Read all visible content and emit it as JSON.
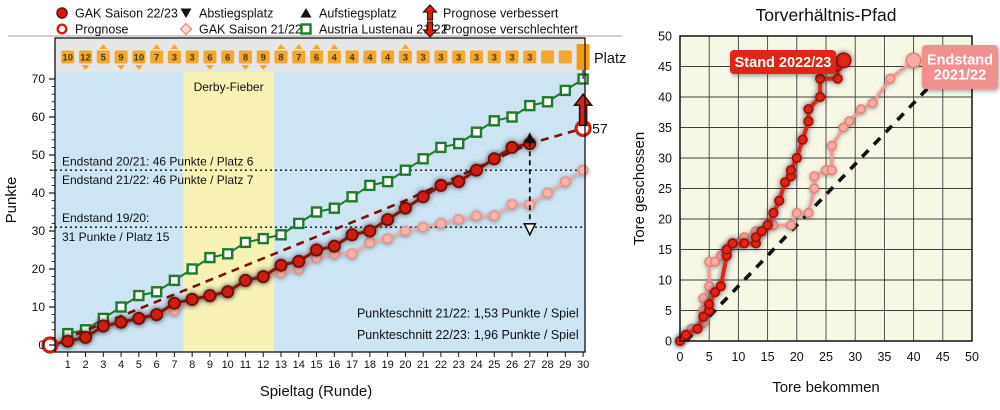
{
  "colors": {
    "red": "#cf1d12",
    "red_edge": "#6f0e06",
    "red_line": "#8a1208",
    "dark_red_dash": "#7c1107",
    "pink": "#f7b5b0",
    "pink_edge": "#e8938c",
    "pink_line": "#f4a9a3",
    "green": "#1f7a2d",
    "orange": "#f5a72b",
    "orange_text": "#4c3a13",
    "blue_bg": "#cde4f3",
    "gray_strip": "#e6e6e6",
    "yellow_band": "#f8f3b5",
    "cream_bg": "#f7f7e6",
    "grid": "#3f3f3f",
    "right_red": "#e02417",
    "right_red_edge": "#a00d04",
    "right_pink": "#f6aba5",
    "right_pink_edge": "#e57f78",
    "right_pink_line": "#f29a95",
    "label_red_box": "#e02417",
    "label_pink_box": "#f1908d"
  },
  "chart_data": [
    {
      "type": "line",
      "title": "",
      "xlabel": "Spieltag (Runde)",
      "ylabel": "Punkte",
      "xlim": [
        0,
        30
      ],
      "ylim": [
        0,
        80
      ],
      "y_tick_step": 10,
      "y_tick_max": 70,
      "x_ticks_every": 1,
      "grid": false,
      "legend_position": "top",
      "band": {
        "label": "Derby-Fieber",
        "x0": 7.5,
        "x1": 12.6
      },
      "platz_row": {
        "label": "Platz",
        "values": [
          10,
          12,
          5,
          9,
          10,
          7,
          3,
          3,
          6,
          6,
          8,
          9,
          8,
          7,
          6,
          4,
          4,
          4,
          4,
          3,
          3,
          3,
          3,
          3,
          3,
          3,
          3
        ],
        "empty_slots": [
          28,
          29
        ],
        "tall_slot": 30
      },
      "hlines": [
        {
          "y": 46
        },
        {
          "y": 31
        }
      ],
      "annotations": [
        {
          "text": "Endstand 20/21: 46 Punkte / Platz 6",
          "x": 0.675,
          "y": 47.3,
          "anchor": "start",
          "size": 12
        },
        {
          "text": "Endstand 21/22: 46 Punkte / Platz 7",
          "x": 0.675,
          "y": 42.4,
          "anchor": "start",
          "size": 12
        },
        {
          "text": "Endstand 19/20:",
          "x": 0.675,
          "y": 32.4,
          "anchor": "start",
          "size": 12
        },
        {
          "text": "31 Punkte / Platz 15",
          "x": 0.675,
          "y": 27.4,
          "anchor": "start",
          "size": 12
        },
        {
          "text": "Punkteschnitt 21/22: 1,53 Punkte / Spiel",
          "x": 29.75,
          "y": 7.3,
          "anchor": "end",
          "size": 12.5
        },
        {
          "text": "Punkteschnitt 22/23: 1,96 Punkte / Spiel",
          "x": 29.75,
          "y": 1.6,
          "anchor": "end",
          "size": 12.5
        },
        {
          "text": "Derby-Fieber",
          "x": 10.05,
          "y": 66.8,
          "anchor": "middle",
          "size": 12
        }
      ],
      "series": [
        {
          "name": "Austria Lustenau 21/22",
          "marker": "open-square",
          "x_start": 1,
          "values": [
            3,
            4,
            7,
            10,
            13,
            14,
            17,
            20,
            23,
            24,
            27,
            28,
            29,
            32,
            35,
            36,
            39,
            42,
            43,
            46,
            49,
            52,
            53,
            56,
            59,
            60,
            63,
            64,
            67,
            70
          ]
        },
        {
          "name": "GAK Saison 21/22",
          "marker": "pink-circle",
          "x_start": 1,
          "values": [
            1,
            2,
            5,
            6,
            7,
            8,
            9,
            12,
            13,
            14,
            17,
            18,
            19,
            20,
            23,
            24,
            24,
            27,
            28,
            30,
            31,
            32,
            33,
            34,
            34,
            37,
            37,
            40,
            43,
            46
          ]
        },
        {
          "name": "GAK Saison 22/23",
          "marker": "red-circle",
          "x_start": 1,
          "from_origin": true,
          "values": [
            1,
            2,
            5,
            6,
            7,
            8,
            11,
            12,
            13,
            14,
            17,
            18,
            21,
            22,
            25,
            26,
            29,
            30,
            33,
            36,
            39,
            42,
            43,
            46,
            49,
            52,
            53
          ]
        }
      ],
      "prognose": {
        "points": [
          [
            0,
            0
          ],
          [
            30,
            57
          ]
        ],
        "dash_line": [
          [
            0,
            0
          ],
          [
            20,
            38
          ],
          [
            27,
            53
          ],
          [
            30,
            57
          ]
        ],
        "end_label": "57"
      },
      "range_marker": {
        "x": 27,
        "y_low": 29,
        "y_high": 56
      },
      "improve_arrow": {
        "x": 30,
        "y_from": 57.8,
        "y_to": 66
      },
      "legend": [
        {
          "label": "GAK Saison 22/23",
          "marker": "red-circle",
          "col": 0,
          "row": 0
        },
        {
          "label": "Prognose",
          "marker": "open-circle",
          "col": 0,
          "row": 1
        },
        {
          "label": "Abstiegsplatz",
          "marker": "triangle-down",
          "col": 1,
          "row": 0
        },
        {
          "label": "GAK Saison 21/22",
          "marker": "pink-diamond",
          "col": 1,
          "row": 1
        },
        {
          "label": "Aufstiegsplatz",
          "marker": "triangle-up",
          "col": 2,
          "row": 0
        },
        {
          "label": "Austria Lustenau 21/22",
          "marker": "open-square",
          "col": 2,
          "row": 1
        },
        {
          "label": "Prognose verbessert",
          "marker": "arrow-up",
          "col": 3,
          "row": 0
        },
        {
          "label": "Prognose verschlechtert",
          "marker": "arrow-down",
          "col": 3,
          "row": 1
        }
      ]
    },
    {
      "type": "scatter-path",
      "title": "Torverhältnis-Pfad",
      "xlabel": "Tore bekommen",
      "ylabel": "Tore geschossen",
      "xlim": [
        0,
        50
      ],
      "ylim": [
        0,
        50
      ],
      "grid_step": 5,
      "grid": true,
      "diagonal": {
        "from": [
          1,
          0
        ],
        "to": [
          48,
          47
        ],
        "style": "dashed"
      },
      "series": [
        {
          "name": "Endstand 2021/22",
          "kind": "pink",
          "points": [
            [
              0,
              0
            ],
            [
              1,
              1
            ],
            [
              2,
              2
            ],
            [
              4,
              3
            ],
            [
              4,
              5
            ],
            [
              4,
              7
            ],
            [
              5,
              9
            ],
            [
              5,
              13
            ],
            [
              6,
              13
            ],
            [
              7,
              14
            ],
            [
              8,
              15
            ],
            [
              9,
              16
            ],
            [
              10,
              16
            ],
            [
              11,
              17
            ],
            [
              13,
              18
            ],
            [
              14,
              18
            ],
            [
              16,
              19
            ],
            [
              19,
              19
            ],
            [
              20,
              21
            ],
            [
              22,
              21
            ],
            [
              23,
              25
            ],
            [
              23,
              27
            ],
            [
              25,
              28
            ],
            [
              26,
              28
            ],
            [
              26,
              32
            ],
            [
              28,
              35
            ],
            [
              29,
              36
            ],
            [
              31,
              38
            ],
            [
              33,
              39
            ],
            [
              36,
              43
            ],
            [
              40,
              46
            ]
          ],
          "label_box": {
            "lines": [
              "Endstand",
              "2021/22"
            ],
            "x": 292,
            "y": 45,
            "w": 76,
            "h": 44
          }
        },
        {
          "name": "Stand 2022/23",
          "kind": "red",
          "points": [
            [
              0,
              0
            ],
            [
              1,
              1
            ],
            [
              3,
              2
            ],
            [
              4,
              4
            ],
            [
              5,
              5
            ],
            [
              5,
              6
            ],
            [
              6,
              8
            ],
            [
              7,
              9
            ],
            [
              8,
              14
            ],
            [
              8,
              15
            ],
            [
              9,
              16
            ],
            [
              11,
              16
            ],
            [
              13,
              16
            ],
            [
              13,
              17
            ],
            [
              14,
              18
            ],
            [
              15,
              19
            ],
            [
              16,
              21
            ],
            [
              17,
              23
            ],
            [
              18,
              26
            ],
            [
              19,
              27
            ],
            [
              19,
              28
            ],
            [
              20,
              30
            ],
            [
              21,
              33
            ],
            [
              22,
              36
            ],
            [
              22,
              38
            ],
            [
              24,
              40
            ],
            [
              24,
              43
            ],
            [
              27,
              43
            ],
            [
              27,
              45
            ],
            [
              28,
              46
            ]
          ],
          "label_box": {
            "lines": [
              "Stand 2022/23"
            ],
            "x": 100,
            "y": 50,
            "w": 106,
            "h": 24
          }
        }
      ]
    }
  ]
}
